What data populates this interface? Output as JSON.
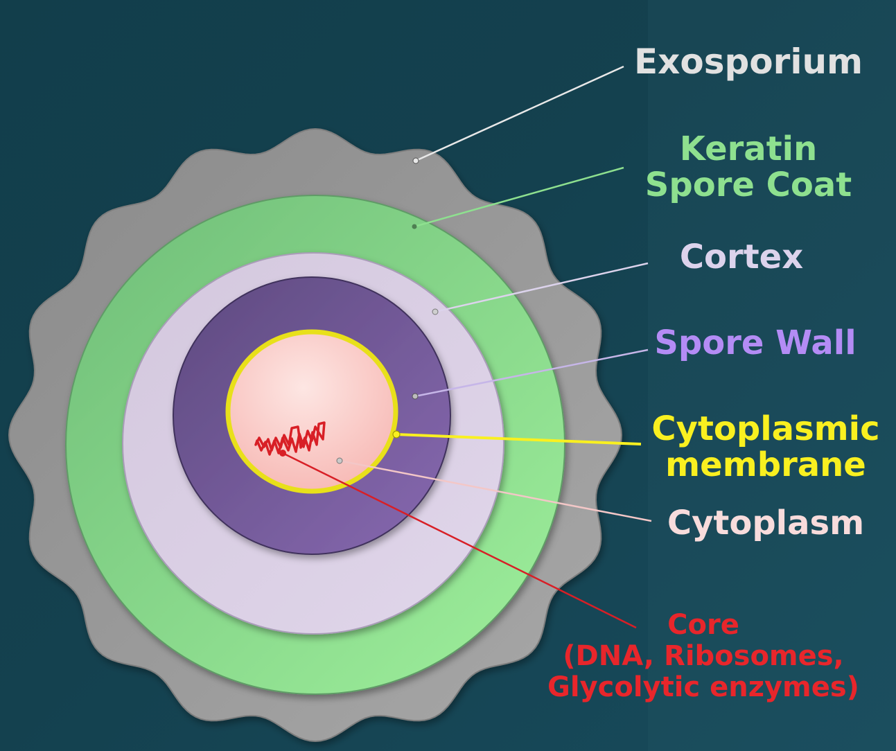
{
  "colors": {
    "background": "#143f4d",
    "exosporium": "#a3a3a3",
    "keratin_spore_coat": "#8fe393",
    "cortex": "#dccfe6",
    "spore_wall": "#6e5596",
    "cytoplasmic_membrane": "#f7ef28",
    "cytoplasm": "#fcd7d4",
    "core": "#d81f26"
  },
  "labels": {
    "exosporium": "Exosporium",
    "keratin_spore_coat": [
      "Keratin",
      "Spore Coat"
    ],
    "cortex": "Cortex",
    "spore_wall": "Spore Wall",
    "cytoplasmic_membrane": [
      "Cytoplasmic",
      "membrane"
    ],
    "cytoplasm": "Cytoplasm",
    "core": [
      "Core",
      "(DNA, Ribosomes,",
      "Glycolytic enzymes)"
    ]
  },
  "label_colors": {
    "exosporium": "#e1e1e1",
    "keratin_spore_coat": "#8ee08f",
    "cortex": "#dcd3ec",
    "spore_wall": "#b48cf5",
    "cytoplasmic_membrane": "#f9f020",
    "cytoplasm": "#f8dcdc",
    "core": "#e8262b"
  }
}
